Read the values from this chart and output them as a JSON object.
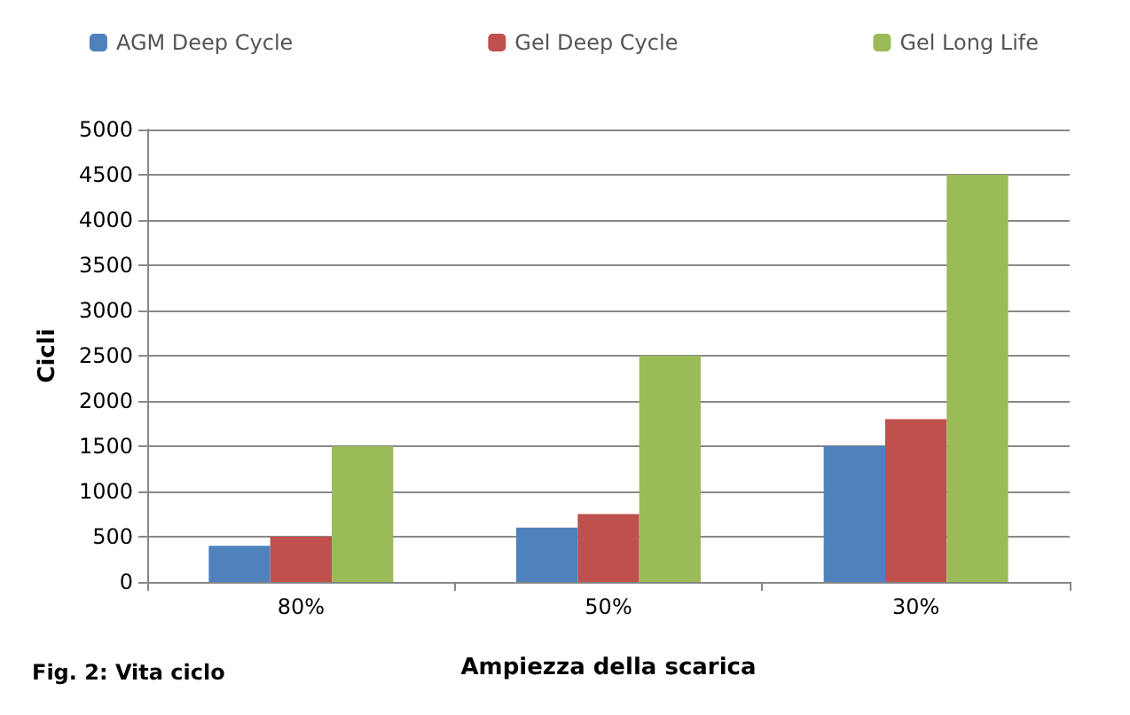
{
  "chart_data": {
    "type": "bar",
    "categories": [
      "80%",
      "50%",
      "30%"
    ],
    "xlabel": "Ampiezza della scarica",
    "ylabel": "Cicli",
    "annotations": [
      "Fig. 2: Vita ciclo"
    ],
    "series": [
      {
        "name": "AGM Deep Cycle",
        "color": "#4f81bd",
        "values": [
          400,
          600,
          1500
        ]
      },
      {
        "name": "Gel Deep Cycle",
        "color": "#c0504d",
        "values": [
          500,
          750,
          1800
        ]
      },
      {
        "name": "Gel Long Life",
        "color": "#9bbb59",
        "values": [
          1500,
          2500,
          4500
        ]
      }
    ],
    "ylim": [
      0,
      5000
    ],
    "yticks": [
      0,
      500,
      1000,
      1500,
      2000,
      2500,
      3000,
      3500,
      4000,
      4500,
      5000
    ],
    "grid": "y",
    "legend": "top"
  }
}
